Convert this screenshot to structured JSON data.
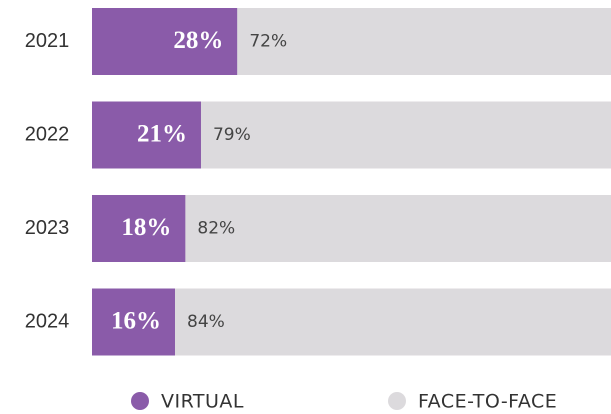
{
  "chart_data": {
    "type": "stacked-bar-horizontal",
    "categories": [
      "2021",
      "2022",
      "2023",
      "2024"
    ],
    "series": [
      {
        "name": "VIRTUAL",
        "color": "#8a5ba9",
        "values": [
          28,
          21,
          18,
          16
        ],
        "value_labels": [
          "28%",
          "21%",
          "18%",
          "16%"
        ]
      },
      {
        "name": "FACE-TO-FACE",
        "color": "#dcdadd",
        "values": [
          72,
          79,
          82,
          84
        ],
        "value_labels": [
          "72%",
          "79%",
          "82%",
          "84%"
        ]
      }
    ],
    "legend": "bottom"
  }
}
